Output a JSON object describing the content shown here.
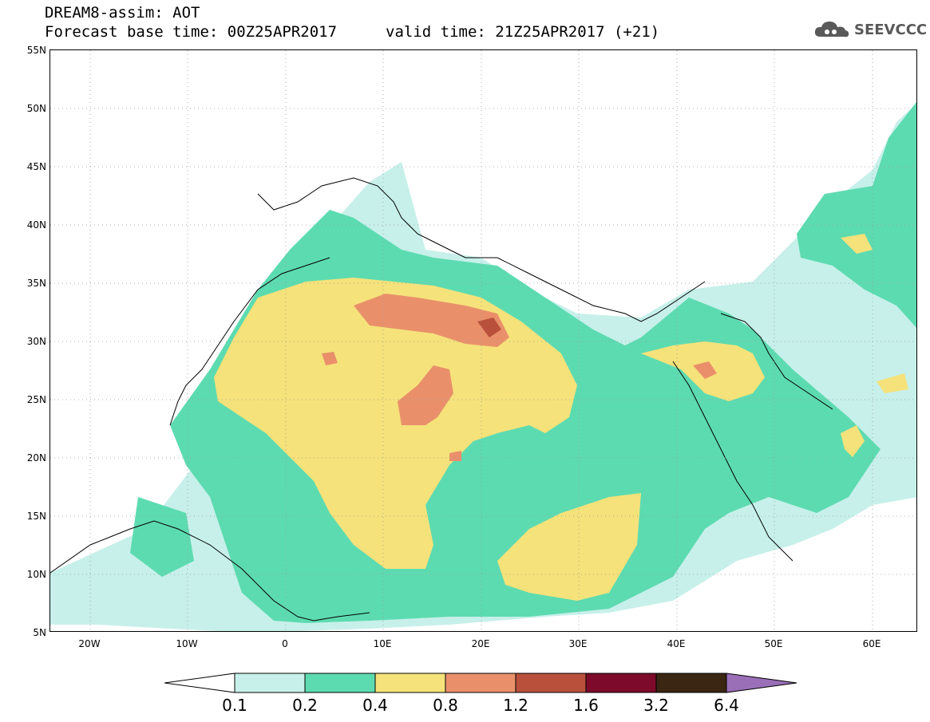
{
  "header": {
    "model_line": "DREAM8-assim: AOT",
    "base_time_line": "Forecast base time: 00Z25APR2017",
    "valid_time_line": "valid time: 21Z25APR2017 (+21)",
    "brand": "SEEVCCC",
    "brand_icon": "cloud-icon"
  },
  "map": {
    "latitude_labels": [
      "55N",
      "50N",
      "45N",
      "40N",
      "35N",
      "30N",
      "25N",
      "20N",
      "15N",
      "10N",
      "5N"
    ],
    "longitude_labels": [
      "20W",
      "10W",
      "0",
      "10E",
      "20E",
      "30E",
      "40E",
      "50E",
      "60E"
    ],
    "grid": "dotted",
    "variable": "Aerosol optical thickness"
  },
  "colorbar": {
    "levels": [
      "0.1",
      "0.2",
      "0.4",
      "0.8",
      "1.2",
      "1.6",
      "3.2",
      "6.4"
    ],
    "colors": [
      "#c7f0ea",
      "#5ddbb0",
      "#f5e27a",
      "#e9906b",
      "#b9503c",
      "#7d0a2a",
      "#3a2612",
      "#9a6fb8"
    ],
    "below_color": "#ffffff"
  }
}
